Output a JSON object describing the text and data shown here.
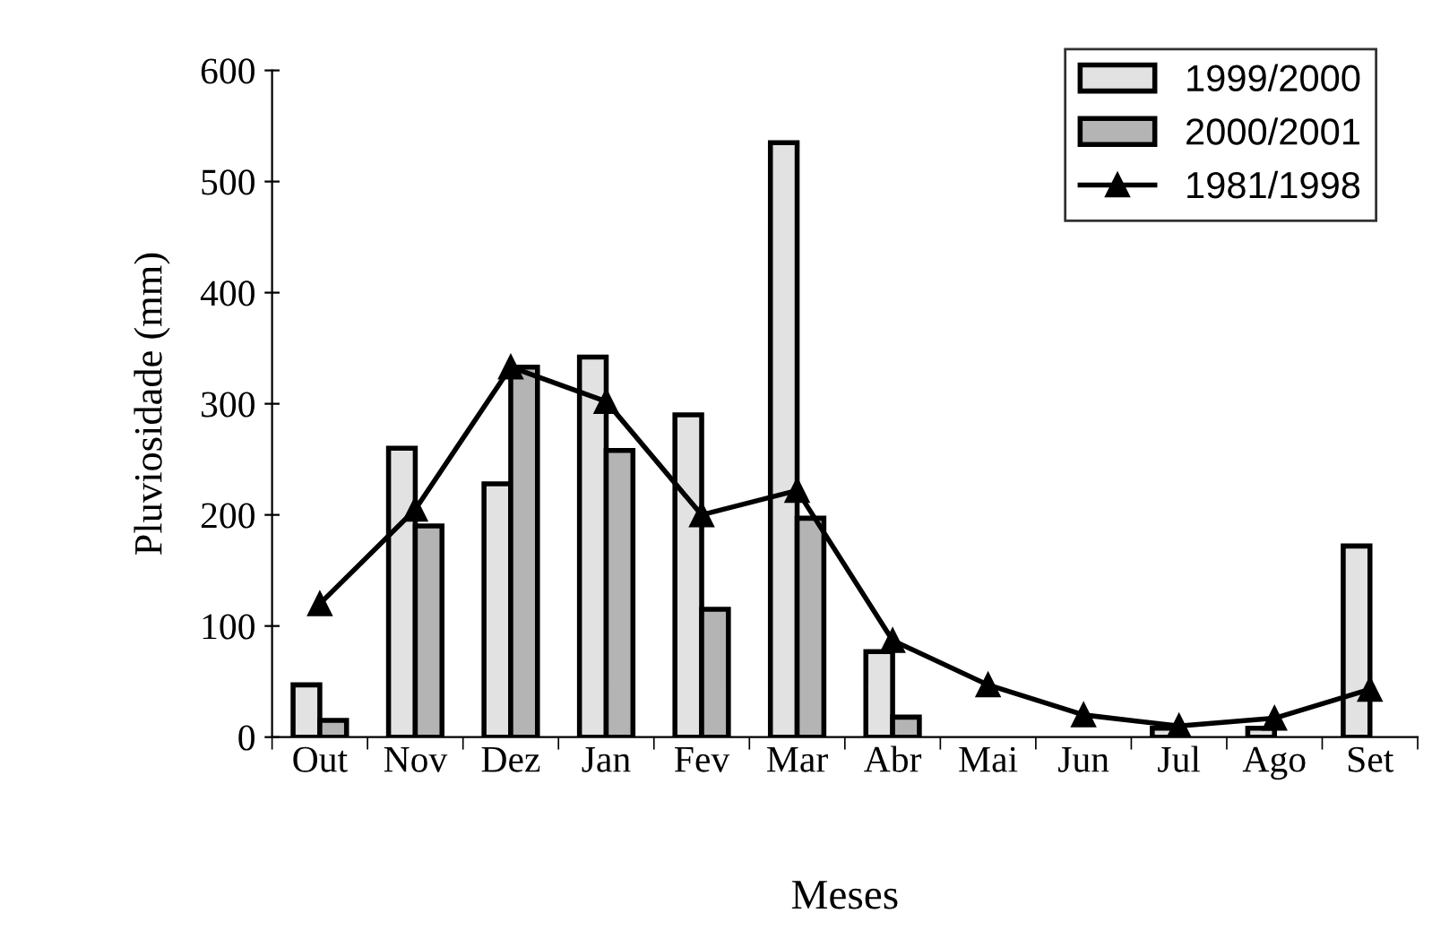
{
  "chart_data": {
    "type": "bar",
    "xlabel": "Meses",
    "ylabel": "Pluviosidade (mm)",
    "categories": [
      "Out",
      "Nov",
      "Dez",
      "Jan",
      "Fev",
      "Mar",
      "Abr",
      "Mai",
      "Jun",
      "Jul",
      "Ago",
      "Set"
    ],
    "series": [
      {
        "name": "1999/2000",
        "color": "#e2e2e2",
        "values": [
          47,
          260,
          228,
          342,
          290,
          535,
          77,
          null,
          null,
          8,
          8,
          172
        ]
      },
      {
        "name": "2000/2001",
        "color": "#b4b4b4",
        "values": [
          15,
          190,
          333,
          258,
          115,
          197,
          18,
          null,
          null,
          null,
          null,
          null
        ]
      },
      {
        "name": "1981/1998",
        "type": "line",
        "color": "#000000",
        "marker": "triangle",
        "values": [
          120,
          205,
          333,
          302,
          200,
          222,
          87,
          47,
          20,
          10,
          17,
          43
        ]
      }
    ],
    "ylim": [
      0,
      600
    ],
    "yticks": [
      0,
      100,
      200,
      300,
      400,
      500,
      600
    ],
    "legend": "top right",
    "grid": false
  }
}
